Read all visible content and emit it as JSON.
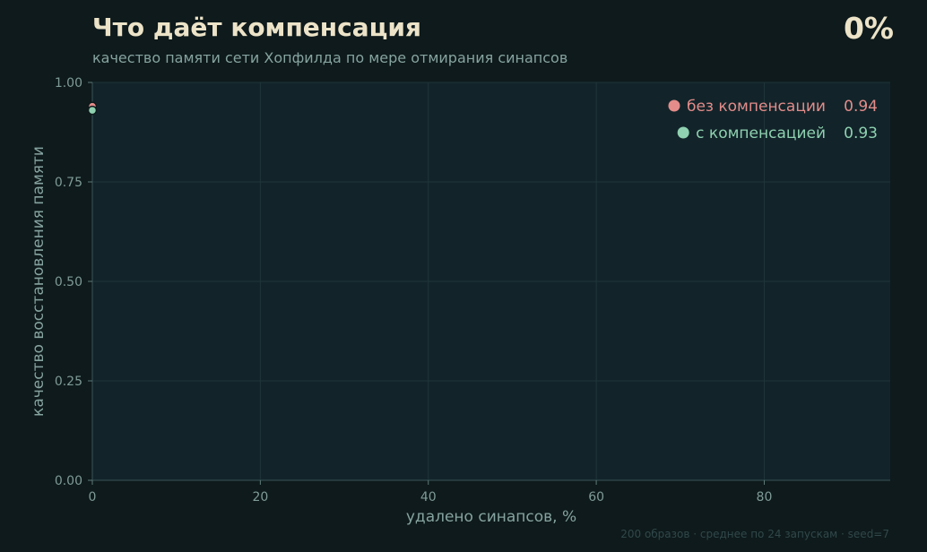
{
  "header": {
    "title": "Что даёт компенсация",
    "subtitle": "качество памяти сети Хопфилда по мере отмирания синапсов",
    "progress_label": "0%"
  },
  "footer": {
    "note": "200 образов · среднее по 24 запускам · seed=7"
  },
  "colors": {
    "background": "#0e1a1c",
    "plot_background": "#12242a",
    "grid": "#1f3539",
    "series_no_comp": "#e38c8a",
    "series_comp": "#8fd1b0"
  },
  "chart_data": {
    "type": "scatter",
    "title": "Что даёт компенсация",
    "subtitle": "качество памяти сети Хопфилда по мере отмирания синапсов",
    "xlabel": "удалено синапсов, %",
    "ylabel": "качество восстановления памяти",
    "xlim": [
      0,
      95
    ],
    "ylim": [
      0,
      1.0
    ],
    "x_ticks": [
      0,
      20,
      40,
      60,
      80
    ],
    "x_tick_labels": [
      "0",
      "20",
      "40",
      "60",
      "80"
    ],
    "y_ticks": [
      0,
      0.25,
      0.5,
      0.75,
      1.0
    ],
    "y_tick_labels": [
      "0.00",
      "0.25",
      "0.50",
      "0.75",
      "1.00"
    ],
    "grid": true,
    "legend_position": "top-right",
    "series": [
      {
        "name": "без компенсации",
        "legend_value": "0.94",
        "color": "#e38c8a",
        "points": [
          {
            "x": 0,
            "y": 0.94
          }
        ]
      },
      {
        "name": "с компенсацией",
        "legend_value": "0.93",
        "color": "#8fd1b0",
        "points": [
          {
            "x": 0,
            "y": 0.93
          }
        ]
      }
    ]
  }
}
